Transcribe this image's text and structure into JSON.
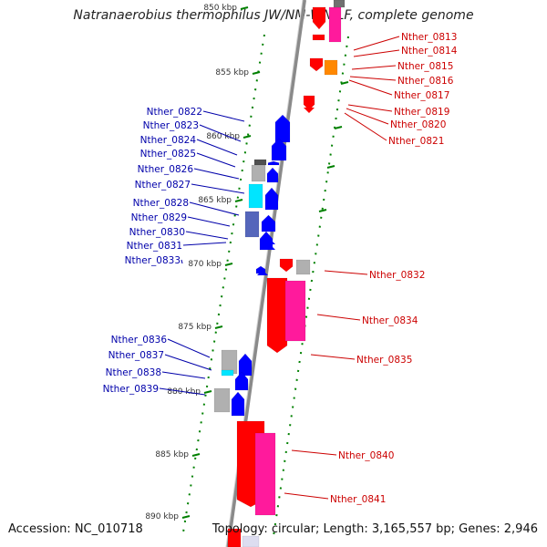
{
  "title": "Natranaerobius thermophilus JW/NM-WN-LF, complete genome",
  "footer": {
    "accession": "Accession: NC_010718",
    "topology": "Topology: circular; Length: 3,165,557 bp; Genes: 2,946"
  },
  "colors": {
    "forward_gene": "#0000ff",
    "reverse_gene": "#ff0000",
    "pink_feature": "#ff1a9c",
    "orange_feature": "#ff8800",
    "grey_feature": "#b0b0b0",
    "cyan_feature": "#00e5ff",
    "axis": "#808080",
    "tick": "#008000"
  },
  "kbp_labels": [
    "850 kbp",
    "855 kbp",
    "860 kbp",
    "865 kbp",
    "870 kbp",
    "875 kbp",
    "880 kbp",
    "885 kbp",
    "890 kbp"
  ],
  "left_genes": [
    "Nther_0822",
    "Nther_0823",
    "Nther_0824",
    "Nther_0825",
    "Nther_0826",
    "Nther_0827",
    "Nther_0828",
    "Nther_0829",
    "Nther_0830",
    "Nther_0831",
    "Nther_0833",
    "Nther_0836",
    "Nther_0837",
    "Nther_0838",
    "Nther_0839"
  ],
  "right_genes": [
    "Nther_0813",
    "Nther_0814",
    "Nther_0815",
    "Nther_0816",
    "Nther_0817",
    "Nther_0819",
    "Nther_0820",
    "Nther_0821",
    "Nther_0832",
    "Nther_0834",
    "Nther_0835",
    "Nther_0840",
    "Nther_0841"
  ]
}
